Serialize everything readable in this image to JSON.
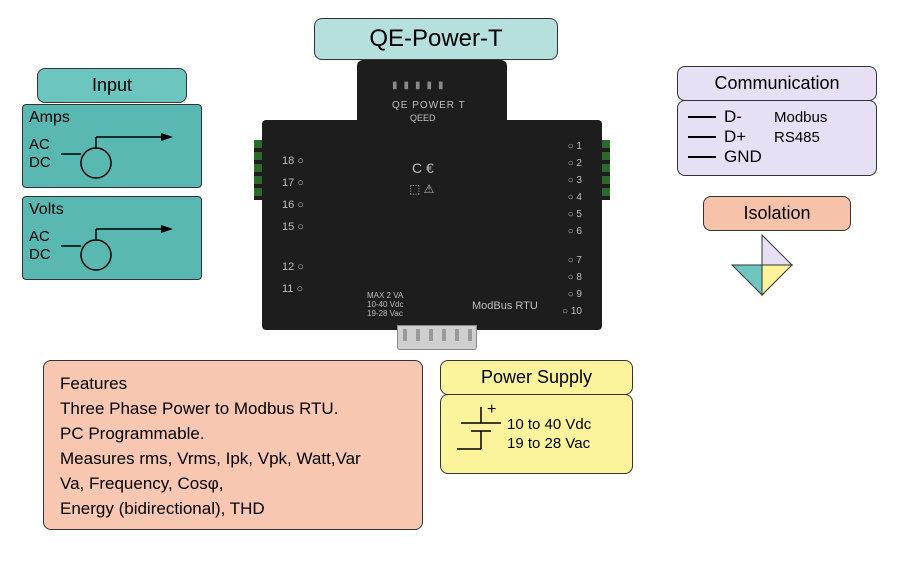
{
  "title": "QE-Power-T",
  "colors": {
    "title_bg": "#b5e0de",
    "input_bg": "#6cc6bf",
    "input_body": "#59b8b1",
    "comm_bg": "#e7dff4",
    "iso_bg": "#f6c2aa",
    "feat_bg": "#f8c7b1",
    "power_bg": "#fbf39b",
    "device_bg": "#1d1d1d",
    "device_text": "#bfbfbf"
  },
  "input": {
    "header": "Input",
    "blocks": [
      {
        "title": "Amps",
        "l1": "AC",
        "l2": "DC"
      },
      {
        "title": "Volts",
        "l1": "AC",
        "l2": "DC"
      }
    ]
  },
  "comm": {
    "header": "Communication",
    "lines": [
      {
        "pin": "D-",
        "proto": "Modbus"
      },
      {
        "pin": "D+",
        "proto": "RS485"
      },
      {
        "pin": "GND",
        "proto": ""
      }
    ]
  },
  "isolation": {
    "header": "Isolation"
  },
  "features": {
    "header": "Features",
    "lines": [
      "Three Phase Power to Modbus RTU.",
      "PC Programmable.",
      "Measures rms, Vrms, Ipk, Vpk, Watt,Var",
      "Va, Frequency, Cosφ,",
      "Energy (bidirectional), THD"
    ]
  },
  "power": {
    "header": "Power Supply",
    "line1": "10 to 40 Vdc",
    "line2": "19 to 28 Vac"
  },
  "device": {
    "label": "QE POWER T",
    "brand": "QEED",
    "left_pins": [
      "18",
      "17",
      "16",
      "15",
      "12",
      "11"
    ],
    "right_pins": [
      "1",
      "2",
      "3",
      "4",
      "5",
      "6",
      "7",
      "8",
      "9",
      "10"
    ],
    "bottom_label": "ModBus RTU",
    "max": "MAX 2 VA\n10-40 Vdc\n19-28 Vac"
  }
}
